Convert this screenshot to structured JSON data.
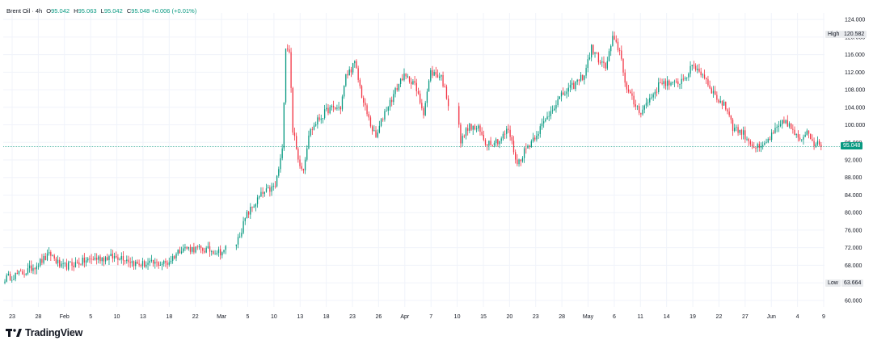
{
  "legend": {
    "symbol": "Brent Oil · 4h",
    "o_label": "O",
    "o_value": "95.042",
    "h_label": "H",
    "h_value": "95.063",
    "l_label": "L",
    "l_value": "95.042",
    "c_label": "C",
    "c_value": "95.048",
    "change": "+0.006 (+0.01%)"
  },
  "brand": {
    "name": "TradingView",
    "icon": "tradingview-logo-icon"
  },
  "colors": {
    "up": "#089981",
    "down": "#f23645",
    "grid": "#f0f3fa",
    "axis_text": "#131722",
    "last_price": "#089981"
  },
  "price_scale": {
    "high_label": "High",
    "high_value": "120.582",
    "low_label": "Low",
    "low_value": "63.664",
    "last_value": "95.048"
  },
  "chart_data": {
    "type": "candlestick",
    "instrument": "Brent Oil",
    "interval": "4h",
    "y_ticks": [
      "60.000",
      "64.000",
      "68.000",
      "72.000",
      "76.000",
      "80.000",
      "84.000",
      "88.000",
      "92.000",
      "96.000",
      "100.000",
      "104.000",
      "108.000",
      "112.000",
      "116.000",
      "120.000",
      "124.000"
    ],
    "ylim": [
      58.5,
      125.5
    ],
    "x_ticks": [
      "23",
      "28",
      "Feb",
      "5",
      "10",
      "13",
      "18",
      "22",
      "Mar",
      "5",
      "10",
      "13",
      "18",
      "23",
      "26",
      "Apr",
      "7",
      "10",
      "15",
      "20",
      "23",
      "28",
      "May",
      "6",
      "11",
      "14",
      "19",
      "22",
      "27",
      "Jun",
      "4",
      "9"
    ],
    "anchors": [
      [
        0,
        65.0
      ],
      [
        12,
        66.5
      ],
      [
        26,
        70.5
      ],
      [
        32,
        67.5
      ],
      [
        50,
        69.5
      ],
      [
        66,
        70.0
      ],
      [
        75,
        68.2
      ],
      [
        92,
        68.5
      ],
      [
        100,
        72.0
      ],
      [
        114,
        71.5
      ],
      [
        124,
        71.0
      ],
      [
        126,
        73.0
      ],
      [
        132,
        79.5
      ],
      [
        140,
        84.0
      ],
      [
        148,
        86.0
      ],
      [
        152,
        94.0
      ],
      [
        154,
        118.0
      ],
      [
        156,
        117.0
      ],
      [
        158,
        99.0
      ],
      [
        161,
        92.0
      ],
      [
        164,
        90.0
      ],
      [
        167,
        98.0
      ],
      [
        172,
        101.0
      ],
      [
        178,
        103.5
      ],
      [
        185,
        104.0
      ],
      [
        188,
        111.0
      ],
      [
        193,
        114.0
      ],
      [
        198,
        105.0
      ],
      [
        202,
        100.0
      ],
      [
        205,
        97.0
      ],
      [
        210,
        103.0
      ],
      [
        214,
        106.0
      ],
      [
        220,
        111.0
      ],
      [
        226,
        110.0
      ],
      [
        232,
        103.0
      ],
      [
        236,
        112.0
      ],
      [
        242,
        111.0
      ],
      [
        246,
        105.0
      ],
      [
        248,
        96.0
      ],
      [
        252,
        99.5
      ],
      [
        258,
        99.0
      ],
      [
        262,
        96.0
      ],
      [
        270,
        96.5
      ],
      [
        275,
        99.0
      ],
      [
        280,
        91.0
      ],
      [
        284,
        94.0
      ],
      [
        290,
        97.5
      ],
      [
        296,
        101.0
      ],
      [
        300,
        104.0
      ],
      [
        306,
        107.0
      ],
      [
        312,
        109.0
      ],
      [
        318,
        111.5
      ],
      [
        322,
        117.5
      ],
      [
        326,
        115.0
      ],
      [
        330,
        113.0
      ],
      [
        334,
        119.5
      ],
      [
        338,
        117.0
      ],
      [
        342,
        108.0
      ],
      [
        346,
        105.0
      ],
      [
        350,
        103.0
      ],
      [
        356,
        106.5
      ],
      [
        362,
        110.0
      ],
      [
        368,
        109.0
      ],
      [
        374,
        110.5
      ],
      [
        380,
        113.5
      ],
      [
        386,
        111.0
      ],
      [
        392,
        106.5
      ],
      [
        398,
        104.0
      ],
      [
        400,
        102.5
      ],
      [
        402,
        99.5
      ],
      [
        408,
        98.0
      ],
      [
        414,
        95.0
      ],
      [
        418,
        94.5
      ],
      [
        422,
        96.5
      ],
      [
        428,
        99.5
      ],
      [
        432,
        101.0
      ],
      [
        436,
        98.5
      ],
      [
        440,
        96.0
      ],
      [
        444,
        99.0
      ],
      [
        448,
        96.0
      ],
      [
        452,
        95.0
      ]
    ],
    "last_price": 95.048,
    "high": 120.582,
    "low": 63.664
  }
}
